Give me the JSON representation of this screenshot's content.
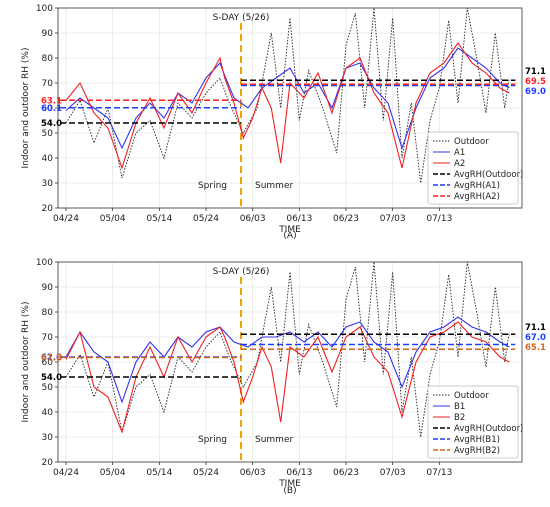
{
  "chart_data": [
    {
      "type": "line",
      "panel_label": "(A)",
      "xlabel": "TIME",
      "ylabel": "Indoor and outdoor RH (%)",
      "x_ticks": [
        "04/24",
        "05/04",
        "05/14",
        "05/24",
        "06/03",
        "06/13",
        "06/23",
        "07/03",
        "07/13"
      ],
      "ylim": [
        20,
        100
      ],
      "y_ticks": [
        20,
        30,
        40,
        50,
        60,
        70,
        80,
        90,
        100
      ],
      "grid": true,
      "legend": "bottom-right",
      "sday_label": "S-DAY (5/26)",
      "season_labels": [
        "Spring",
        "Summer"
      ],
      "series": [
        {
          "name": "Outdoor",
          "color": "#222222",
          "points": [
            [
              0,
              54
            ],
            [
              3,
              63
            ],
            [
              6,
              46
            ],
            [
              9,
              60
            ],
            [
              12,
              32
            ],
            [
              15,
              50
            ],
            [
              18,
              55
            ],
            [
              21,
              40
            ],
            [
              24,
              62
            ],
            [
              27,
              56
            ],
            [
              30,
              66
            ],
            [
              33,
              72
            ],
            [
              35,
              62
            ],
            [
              38,
              50
            ],
            [
              41,
              60
            ],
            [
              44,
              90
            ],
            [
              46,
              60
            ],
            [
              48,
              96
            ],
            [
              50,
              55
            ],
            [
              52,
              75
            ],
            [
              55,
              60
            ],
            [
              58,
              42
            ],
            [
              60,
              85
            ],
            [
              62,
              98
            ],
            [
              64,
              60
            ],
            [
              66,
              100
            ],
            [
              68,
              55
            ],
            [
              70,
              96
            ],
            [
              72,
              40
            ],
            [
              74,
              62
            ],
            [
              76,
              30
            ],
            [
              78,
              55
            ],
            [
              80,
              68
            ],
            [
              82,
              95
            ],
            [
              84,
              62
            ],
            [
              86,
              100
            ],
            [
              88,
              80
            ],
            [
              90,
              58
            ],
            [
              92,
              90
            ],
            [
              94,
              60
            ],
            [
              95,
              72
            ]
          ]
        },
        {
          "name": "A1",
          "color": "#3333ee",
          "points": [
            [
              0,
              59
            ],
            [
              3,
              64
            ],
            [
              6,
              60
            ],
            [
              9,
              56
            ],
            [
              12,
              44
            ],
            [
              15,
              56
            ],
            [
              18,
              62
            ],
            [
              21,
              56
            ],
            [
              24,
              66
            ],
            [
              27,
              62
            ],
            [
              30,
              72
            ],
            [
              33,
              78
            ],
            [
              34,
              73
            ],
            [
              36,
              64
            ],
            [
              39,
              60
            ],
            [
              42,
              68
            ],
            [
              45,
              72
            ],
            [
              48,
              76
            ],
            [
              51,
              66
            ],
            [
              54,
              70
            ],
            [
              57,
              60
            ],
            [
              60,
              76
            ],
            [
              63,
              78
            ],
            [
              66,
              68
            ],
            [
              69,
              62
            ],
            [
              72,
              44
            ],
            [
              75,
              60
            ],
            [
              78,
              72
            ],
            [
              81,
              76
            ],
            [
              84,
              84
            ],
            [
              87,
              80
            ],
            [
              90,
              76
            ],
            [
              93,
              70
            ],
            [
              95,
              68
            ]
          ]
        },
        {
          "name": "A2",
          "color": "#ee2222",
          "points": [
            [
              0,
              63
            ],
            [
              3,
              70
            ],
            [
              6,
              58
            ],
            [
              9,
              52
            ],
            [
              12,
              36
            ],
            [
              15,
              54
            ],
            [
              18,
              64
            ],
            [
              21,
              52
            ],
            [
              24,
              66
            ],
            [
              27,
              58
            ],
            [
              30,
              70
            ],
            [
              33,
              80
            ],
            [
              34,
              72
            ],
            [
              36,
              62
            ],
            [
              38,
              48
            ],
            [
              40,
              56
            ],
            [
              42,
              68
            ],
            [
              44,
              60
            ],
            [
              46,
              38
            ],
            [
              48,
              70
            ],
            [
              51,
              64
            ],
            [
              54,
              74
            ],
            [
              57,
              58
            ],
            [
              60,
              76
            ],
            [
              63,
              80
            ],
            [
              66,
              66
            ],
            [
              69,
              58
            ],
            [
              72,
              36
            ],
            [
              75,
              62
            ],
            [
              78,
              74
            ],
            [
              81,
              78
            ],
            [
              84,
              86
            ],
            [
              87,
              78
            ],
            [
              90,
              74
            ],
            [
              93,
              68
            ],
            [
              95,
              66
            ]
          ]
        },
        {
          "name": "AvgRH(Outdoor)",
          "color": "#000000",
          "dash": true,
          "values": [
            54.0,
            71.1
          ]
        },
        {
          "name": "AvgRH(A1)",
          "color": "#1f3fff",
          "dash": true,
          "values": [
            60.1,
            69.0
          ]
        },
        {
          "name": "AvgRH(A2)",
          "color": "#ff2020",
          "dash": true,
          "values": [
            63.1,
            69.5
          ]
        }
      ],
      "annotations": {
        "left": [
          "63.1",
          "60.1",
          "54.0"
        ],
        "right": [
          "71.1",
          "69.5",
          "69.0"
        ]
      }
    },
    {
      "type": "line",
      "panel_label": "(B)",
      "xlabel": "TIME",
      "ylabel": "Indoor and outdoor RH (%)",
      "x_ticks": [
        "04/24",
        "05/04",
        "05/14",
        "05/24",
        "06/03",
        "06/13",
        "06/23",
        "07/03",
        "07/13"
      ],
      "ylim": [
        20,
        100
      ],
      "y_ticks": [
        20,
        30,
        40,
        50,
        60,
        70,
        80,
        90,
        100
      ],
      "grid": true,
      "legend": "bottom-right",
      "sday_label": "S-DAY (5/26)",
      "season_labels": [
        "Spring",
        "Summer"
      ],
      "series": [
        {
          "name": "Outdoor",
          "color": "#222222",
          "points": [
            [
              0,
              54
            ],
            [
              3,
              63
            ],
            [
              6,
              46
            ],
            [
              9,
              60
            ],
            [
              12,
              32
            ],
            [
              15,
              50
            ],
            [
              18,
              55
            ],
            [
              21,
              40
            ],
            [
              24,
              62
            ],
            [
              27,
              56
            ],
            [
              30,
              66
            ],
            [
              33,
              72
            ],
            [
              35,
              62
            ],
            [
              38,
              50
            ],
            [
              41,
              60
            ],
            [
              44,
              90
            ],
            [
              46,
              60
            ],
            [
              48,
              96
            ],
            [
              50,
              55
            ],
            [
              52,
              75
            ],
            [
              55,
              60
            ],
            [
              58,
              42
            ],
            [
              60,
              85
            ],
            [
              62,
              98
            ],
            [
              64,
              60
            ],
            [
              66,
              100
            ],
            [
              68,
              55
            ],
            [
              70,
              96
            ],
            [
              72,
              40
            ],
            [
              74,
              62
            ],
            [
              76,
              30
            ],
            [
              78,
              55
            ],
            [
              80,
              68
            ],
            [
              82,
              95
            ],
            [
              84,
              62
            ],
            [
              86,
              100
            ],
            [
              88,
              80
            ],
            [
              90,
              58
            ],
            [
              92,
              90
            ],
            [
              94,
              60
            ],
            [
              95,
              72
            ]
          ]
        },
        {
          "name": "B1",
          "color": "#3333ee",
          "points": [
            [
              0,
              62
            ],
            [
              3,
              72
            ],
            [
              6,
              64
            ],
            [
              9,
              60
            ],
            [
              12,
              44
            ],
            [
              15,
              60
            ],
            [
              18,
              68
            ],
            [
              21,
              62
            ],
            [
              24,
              70
            ],
            [
              27,
              66
            ],
            [
              30,
              72
            ],
            [
              33,
              74
            ],
            [
              34,
              72
            ],
            [
              36,
              68
            ],
            [
              39,
              66
            ],
            [
              42,
              70
            ],
            [
              45,
              70
            ],
            [
              48,
              72
            ],
            [
              51,
              68
            ],
            [
              54,
              72
            ],
            [
              57,
              66
            ],
            [
              60,
              74
            ],
            [
              63,
              76
            ],
            [
              66,
              68
            ],
            [
              69,
              64
            ],
            [
              72,
              50
            ],
            [
              75,
              64
            ],
            [
              78,
              72
            ],
            [
              81,
              74
            ],
            [
              84,
              78
            ],
            [
              87,
              74
            ],
            [
              90,
              72
            ],
            [
              93,
              68
            ],
            [
              95,
              66
            ]
          ]
        },
        {
          "name": "B2",
          "color": "#ee2222",
          "points": [
            [
              0,
              61
            ],
            [
              3,
              72
            ],
            [
              6,
              50
            ],
            [
              9,
              46
            ],
            [
              12,
              32
            ],
            [
              15,
              54
            ],
            [
              18,
              66
            ],
            [
              21,
              54
            ],
            [
              24,
              70
            ],
            [
              27,
              60
            ],
            [
              30,
              70
            ],
            [
              33,
              74
            ],
            [
              34,
              70
            ],
            [
              36,
              60
            ],
            [
              38,
              44
            ],
            [
              40,
              54
            ],
            [
              42,
              66
            ],
            [
              44,
              58
            ],
            [
              46,
              36
            ],
            [
              48,
              66
            ],
            [
              51,
              62
            ],
            [
              54,
              70
            ],
            [
              57,
              56
            ],
            [
              60,
              70
            ],
            [
              63,
              74
            ],
            [
              66,
              62
            ],
            [
              69,
              56
            ],
            [
              72,
              38
            ],
            [
              75,
              60
            ],
            [
              78,
              70
            ],
            [
              81,
              72
            ],
            [
              84,
              76
            ],
            [
              87,
              70
            ],
            [
              90,
              68
            ],
            [
              93,
              62
            ],
            [
              95,
              60
            ]
          ]
        },
        {
          "name": "AvgRH(Outdoor)",
          "color": "#000000",
          "dash": true,
          "values": [
            54.0,
            71.1
          ]
        },
        {
          "name": "AvgRH(B1)",
          "color": "#1f3fff",
          "dash": true,
          "values": [
            62.0,
            67.0
          ]
        },
        {
          "name": "AvgRH(B2)",
          "color": "#d2691e",
          "dash": true,
          "values": [
            61.8,
            65.1
          ]
        }
      ],
      "annotations": {
        "left": [
          "62.0",
          "61.8",
          "54.0"
        ],
        "right": [
          "71.1",
          "67.0",
          "65.1"
        ]
      }
    }
  ]
}
